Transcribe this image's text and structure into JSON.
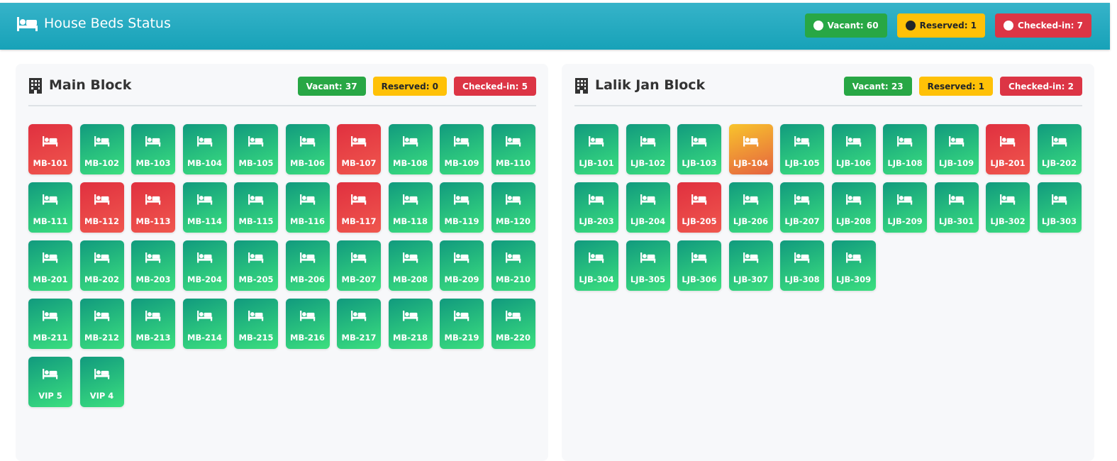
{
  "header": {
    "title": "House Beds Status",
    "badges": [
      {
        "label": "Vacant: 60",
        "status": "vacant"
      },
      {
        "label": "Reserved: 1",
        "status": "reserved"
      },
      {
        "label": "Checked-in: 7",
        "status": "checked-in"
      }
    ]
  },
  "blocks": [
    {
      "title": "Main Block",
      "badges": [
        {
          "label": "Vacant: 37",
          "status": "vacant"
        },
        {
          "label": "Reserved: 0",
          "status": "reserved"
        },
        {
          "label": "Checked-in: 5",
          "status": "checked-in"
        }
      ],
      "beds": [
        {
          "label": "MB-101",
          "status": "checked-in"
        },
        {
          "label": "MB-102",
          "status": "vacant"
        },
        {
          "label": "MB-103",
          "status": "vacant"
        },
        {
          "label": "MB-104",
          "status": "vacant"
        },
        {
          "label": "MB-105",
          "status": "vacant"
        },
        {
          "label": "MB-106",
          "status": "vacant"
        },
        {
          "label": "MB-107",
          "status": "checked-in"
        },
        {
          "label": "MB-108",
          "status": "vacant"
        },
        {
          "label": "MB-109",
          "status": "vacant"
        },
        {
          "label": "MB-110",
          "status": "vacant"
        },
        {
          "label": "MB-111",
          "status": "vacant"
        },
        {
          "label": "MB-112",
          "status": "checked-in"
        },
        {
          "label": "MB-113",
          "status": "checked-in"
        },
        {
          "label": "MB-114",
          "status": "vacant"
        },
        {
          "label": "MB-115",
          "status": "vacant"
        },
        {
          "label": "MB-116",
          "status": "vacant"
        },
        {
          "label": "MB-117",
          "status": "checked-in"
        },
        {
          "label": "MB-118",
          "status": "vacant"
        },
        {
          "label": "MB-119",
          "status": "vacant"
        },
        {
          "label": "MB-120",
          "status": "vacant"
        },
        {
          "label": "MB-201",
          "status": "vacant"
        },
        {
          "label": "MB-202",
          "status": "vacant"
        },
        {
          "label": "MB-203",
          "status": "vacant"
        },
        {
          "label": "MB-204",
          "status": "vacant"
        },
        {
          "label": "MB-205",
          "status": "vacant"
        },
        {
          "label": "MB-206",
          "status": "vacant"
        },
        {
          "label": "MB-207",
          "status": "vacant"
        },
        {
          "label": "MB-208",
          "status": "vacant"
        },
        {
          "label": "MB-209",
          "status": "vacant"
        },
        {
          "label": "MB-210",
          "status": "vacant"
        },
        {
          "label": "MB-211",
          "status": "vacant"
        },
        {
          "label": "MB-212",
          "status": "vacant"
        },
        {
          "label": "MB-213",
          "status": "vacant"
        },
        {
          "label": "MB-214",
          "status": "vacant"
        },
        {
          "label": "MB-215",
          "status": "vacant"
        },
        {
          "label": "MB-216",
          "status": "vacant"
        },
        {
          "label": "MB-217",
          "status": "vacant"
        },
        {
          "label": "MB-218",
          "status": "vacant"
        },
        {
          "label": "MB-219",
          "status": "vacant"
        },
        {
          "label": "MB-220",
          "status": "vacant"
        },
        {
          "label": "VIP 5",
          "status": "vacant"
        },
        {
          "label": "VIP 4",
          "status": "vacant"
        }
      ]
    },
    {
      "title": "Lalik Jan Block",
      "badges": [
        {
          "label": "Vacant: 23",
          "status": "vacant"
        },
        {
          "label": "Reserved: 1",
          "status": "reserved"
        },
        {
          "label": "Checked-in: 2",
          "status": "checked-in"
        }
      ],
      "beds": [
        {
          "label": "LJB-101",
          "status": "vacant"
        },
        {
          "label": "LJB-102",
          "status": "vacant"
        },
        {
          "label": "LJB-103",
          "status": "vacant"
        },
        {
          "label": "LJB-104",
          "status": "reserved"
        },
        {
          "label": "LJB-105",
          "status": "vacant"
        },
        {
          "label": "LJB-106",
          "status": "vacant"
        },
        {
          "label": "LJB-108",
          "status": "vacant"
        },
        {
          "label": "LJB-109",
          "status": "vacant"
        },
        {
          "label": "LJB-201",
          "status": "checked-in"
        },
        {
          "label": "LJB-202",
          "status": "vacant"
        },
        {
          "label": "LJB-203",
          "status": "vacant"
        },
        {
          "label": "LJB-204",
          "status": "vacant"
        },
        {
          "label": "LJB-205",
          "status": "checked-in"
        },
        {
          "label": "LJB-206",
          "status": "vacant"
        },
        {
          "label": "LJB-207",
          "status": "vacant"
        },
        {
          "label": "LJB-208",
          "status": "vacant"
        },
        {
          "label": "LJB-209",
          "status": "vacant"
        },
        {
          "label": "LJB-301",
          "status": "vacant"
        },
        {
          "label": "LJB-302",
          "status": "vacant"
        },
        {
          "label": "LJB-303",
          "status": "vacant"
        },
        {
          "label": "LJB-304",
          "status": "vacant"
        },
        {
          "label": "LJB-305",
          "status": "vacant"
        },
        {
          "label": "LJB-306",
          "status": "vacant"
        },
        {
          "label": "LJB-307",
          "status": "vacant"
        },
        {
          "label": "LJB-308",
          "status": "vacant"
        },
        {
          "label": "LJB-309",
          "status": "vacant"
        }
      ]
    }
  ]
}
